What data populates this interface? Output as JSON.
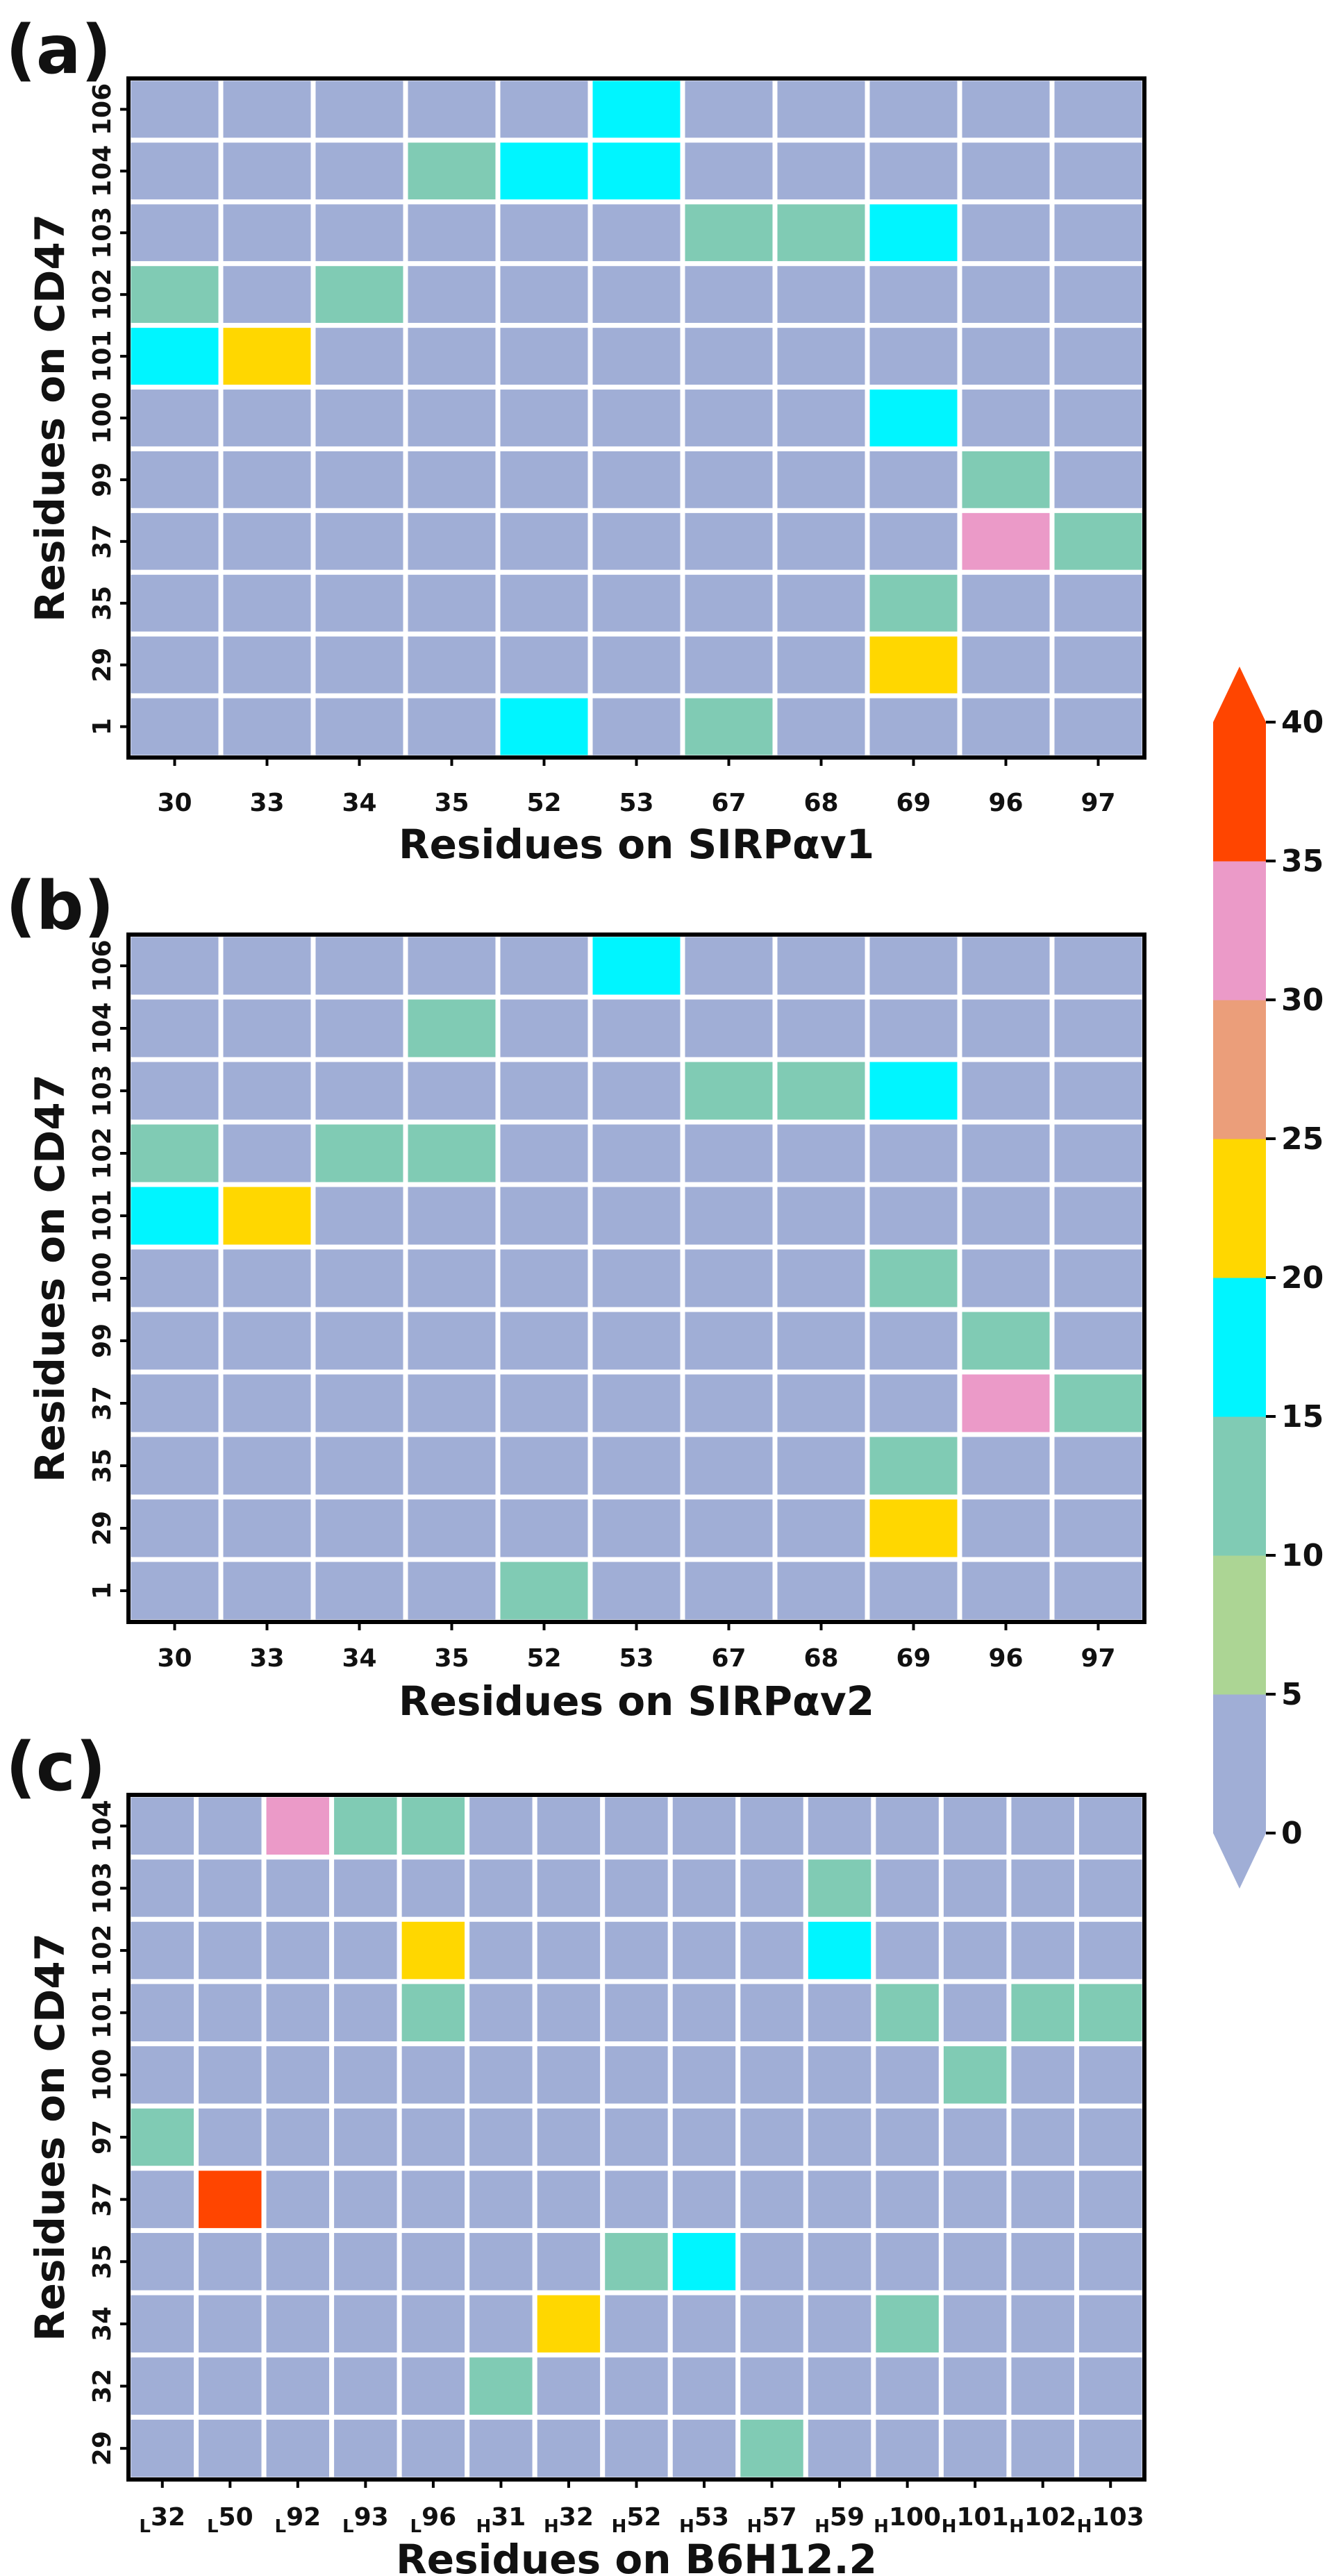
{
  "colorbar": {
    "min": 0,
    "max": 40,
    "extend": "both",
    "bins": [
      {
        "from": 0,
        "to": 5,
        "color": "#a0aed6"
      },
      {
        "from": 5,
        "to": 10,
        "color": "#acd594"
      },
      {
        "from": 10,
        "to": 15,
        "color": "#80cbb4"
      },
      {
        "from": 15,
        "to": 20,
        "color": "#00f5ff"
      },
      {
        "from": 20,
        "to": 25,
        "color": "#ffd700"
      },
      {
        "from": 25,
        "to": 30,
        "color": "#eb9e7a"
      },
      {
        "from": 30,
        "to": 35,
        "color": "#eb9ac8"
      },
      {
        "from": 35,
        "to": 40,
        "color": "#ff4500"
      }
    ],
    "ticks": [
      "0",
      "5",
      "10",
      "15",
      "20",
      "25",
      "30",
      "35",
      "40"
    ],
    "extend_low_color": "#a0aed6",
    "extend_high_color": "#ff4500",
    "gridline_color": "#ffffff"
  },
  "chart_data": [
    {
      "type": "heatmap",
      "panel_label": "(a)",
      "xlabel": "Residues on SIRPαv1",
      "ylabel": "Residues on CD47",
      "x": [
        {
          "sub": "",
          "num": "30"
        },
        {
          "sub": "",
          "num": "33"
        },
        {
          "sub": "",
          "num": "34"
        },
        {
          "sub": "",
          "num": "35"
        },
        {
          "sub": "",
          "num": "52"
        },
        {
          "sub": "",
          "num": "53"
        },
        {
          "sub": "",
          "num": "67"
        },
        {
          "sub": "",
          "num": "68"
        },
        {
          "sub": "",
          "num": "69"
        },
        {
          "sub": "",
          "num": "96"
        },
        {
          "sub": "",
          "num": "97"
        }
      ],
      "y": [
        "106",
        "104",
        "103",
        "102",
        "101",
        "100",
        "99",
        "37",
        "35",
        "29",
        "1"
      ],
      "values": [
        [
          0,
          0,
          0,
          0,
          0,
          17,
          0,
          0,
          0,
          0,
          0
        ],
        [
          0,
          0,
          0,
          12,
          17,
          17,
          0,
          0,
          0,
          0,
          0
        ],
        [
          0,
          0,
          0,
          0,
          0,
          0,
          12,
          12,
          17,
          0,
          0
        ],
        [
          12,
          0,
          12,
          0,
          0,
          0,
          0,
          0,
          0,
          0,
          0
        ],
        [
          17,
          22,
          0,
          0,
          0,
          0,
          0,
          0,
          0,
          0,
          0
        ],
        [
          0,
          0,
          0,
          0,
          0,
          0,
          0,
          0,
          17,
          0,
          0
        ],
        [
          0,
          0,
          0,
          0,
          0,
          0,
          0,
          0,
          0,
          12,
          0
        ],
        [
          0,
          0,
          0,
          0,
          0,
          0,
          0,
          0,
          0,
          32,
          12
        ],
        [
          0,
          0,
          0,
          0,
          0,
          0,
          0,
          0,
          12,
          0,
          0
        ],
        [
          0,
          0,
          0,
          0,
          0,
          0,
          0,
          0,
          22,
          0,
          0
        ],
        [
          0,
          0,
          0,
          0,
          17,
          0,
          12,
          0,
          0,
          0,
          0
        ]
      ]
    },
    {
      "type": "heatmap",
      "panel_label": "(b)",
      "xlabel": "Residues on SIRPαv2",
      "ylabel": "Residues on CD47",
      "x": [
        {
          "sub": "",
          "num": "30"
        },
        {
          "sub": "",
          "num": "33"
        },
        {
          "sub": "",
          "num": "34"
        },
        {
          "sub": "",
          "num": "35"
        },
        {
          "sub": "",
          "num": "52"
        },
        {
          "sub": "",
          "num": "53"
        },
        {
          "sub": "",
          "num": "67"
        },
        {
          "sub": "",
          "num": "68"
        },
        {
          "sub": "",
          "num": "69"
        },
        {
          "sub": "",
          "num": "96"
        },
        {
          "sub": "",
          "num": "97"
        }
      ],
      "y": [
        "106",
        "104",
        "103",
        "102",
        "101",
        "100",
        "99",
        "37",
        "35",
        "29",
        "1"
      ],
      "values": [
        [
          0,
          0,
          0,
          0,
          0,
          17,
          0,
          0,
          0,
          0,
          0
        ],
        [
          0,
          0,
          0,
          12,
          0,
          0,
          0,
          0,
          0,
          0,
          0
        ],
        [
          0,
          0,
          0,
          0,
          0,
          0,
          12,
          12,
          17,
          0,
          0
        ],
        [
          12,
          0,
          12,
          12,
          0,
          0,
          0,
          0,
          0,
          0,
          0
        ],
        [
          17,
          22,
          0,
          0,
          0,
          0,
          0,
          0,
          0,
          0,
          0
        ],
        [
          0,
          0,
          0,
          0,
          0,
          0,
          0,
          0,
          12,
          0,
          0
        ],
        [
          0,
          0,
          0,
          0,
          0,
          0,
          0,
          0,
          0,
          12,
          0
        ],
        [
          0,
          0,
          0,
          0,
          0,
          0,
          0,
          0,
          0,
          32,
          12
        ],
        [
          0,
          0,
          0,
          0,
          0,
          0,
          0,
          0,
          12,
          0,
          0
        ],
        [
          0,
          0,
          0,
          0,
          0,
          0,
          0,
          0,
          22,
          0,
          0
        ],
        [
          0,
          0,
          0,
          0,
          12,
          0,
          0,
          0,
          0,
          0,
          0
        ]
      ]
    },
    {
      "type": "heatmap",
      "panel_label": "(c)",
      "xlabel": "Residues on B6H12.2",
      "ylabel": "Residues on CD47",
      "x": [
        {
          "sub": "L",
          "num": "32"
        },
        {
          "sub": "L",
          "num": "50"
        },
        {
          "sub": "L",
          "num": "92"
        },
        {
          "sub": "L",
          "num": "93"
        },
        {
          "sub": "L",
          "num": "96"
        },
        {
          "sub": "H",
          "num": "31"
        },
        {
          "sub": "H",
          "num": "32"
        },
        {
          "sub": "H",
          "num": "52"
        },
        {
          "sub": "H",
          "num": "53"
        },
        {
          "sub": "H",
          "num": "57"
        },
        {
          "sub": "H",
          "num": "59"
        },
        {
          "sub": "H",
          "num": "100"
        },
        {
          "sub": "H",
          "num": "101"
        },
        {
          "sub": "H",
          "num": "102"
        },
        {
          "sub": "H",
          "num": "103"
        }
      ],
      "y": [
        "104",
        "103",
        "102",
        "101",
        "100",
        "97",
        "37",
        "35",
        "34",
        "32",
        "29"
      ],
      "values": [
        [
          0,
          0,
          32,
          12,
          12,
          0,
          0,
          0,
          0,
          0,
          0,
          0,
          0,
          0,
          0
        ],
        [
          0,
          0,
          0,
          0,
          0,
          0,
          0,
          0,
          0,
          0,
          12,
          0,
          0,
          0,
          0
        ],
        [
          0,
          0,
          0,
          0,
          22,
          0,
          0,
          0,
          0,
          0,
          17,
          0,
          0,
          0,
          0
        ],
        [
          0,
          0,
          0,
          0,
          12,
          0,
          0,
          0,
          0,
          0,
          0,
          12,
          0,
          12,
          12
        ],
        [
          0,
          0,
          0,
          0,
          0,
          0,
          0,
          0,
          0,
          0,
          0,
          0,
          12,
          0,
          0
        ],
        [
          12,
          0,
          0,
          0,
          0,
          0,
          0,
          0,
          0,
          0,
          0,
          0,
          0,
          0,
          0
        ],
        [
          0,
          37,
          0,
          0,
          0,
          0,
          0,
          0,
          0,
          0,
          0,
          0,
          0,
          0,
          0
        ],
        [
          0,
          0,
          0,
          0,
          0,
          0,
          0,
          12,
          17,
          0,
          0,
          0,
          0,
          0,
          0
        ],
        [
          0,
          0,
          0,
          0,
          0,
          0,
          22,
          0,
          0,
          0,
          0,
          12,
          0,
          0,
          0
        ],
        [
          0,
          0,
          0,
          0,
          0,
          12,
          0,
          0,
          0,
          0,
          0,
          0,
          0,
          0,
          0
        ],
        [
          0,
          0,
          0,
          0,
          0,
          0,
          0,
          0,
          0,
          12,
          0,
          0,
          0,
          0,
          0
        ]
      ]
    }
  ]
}
